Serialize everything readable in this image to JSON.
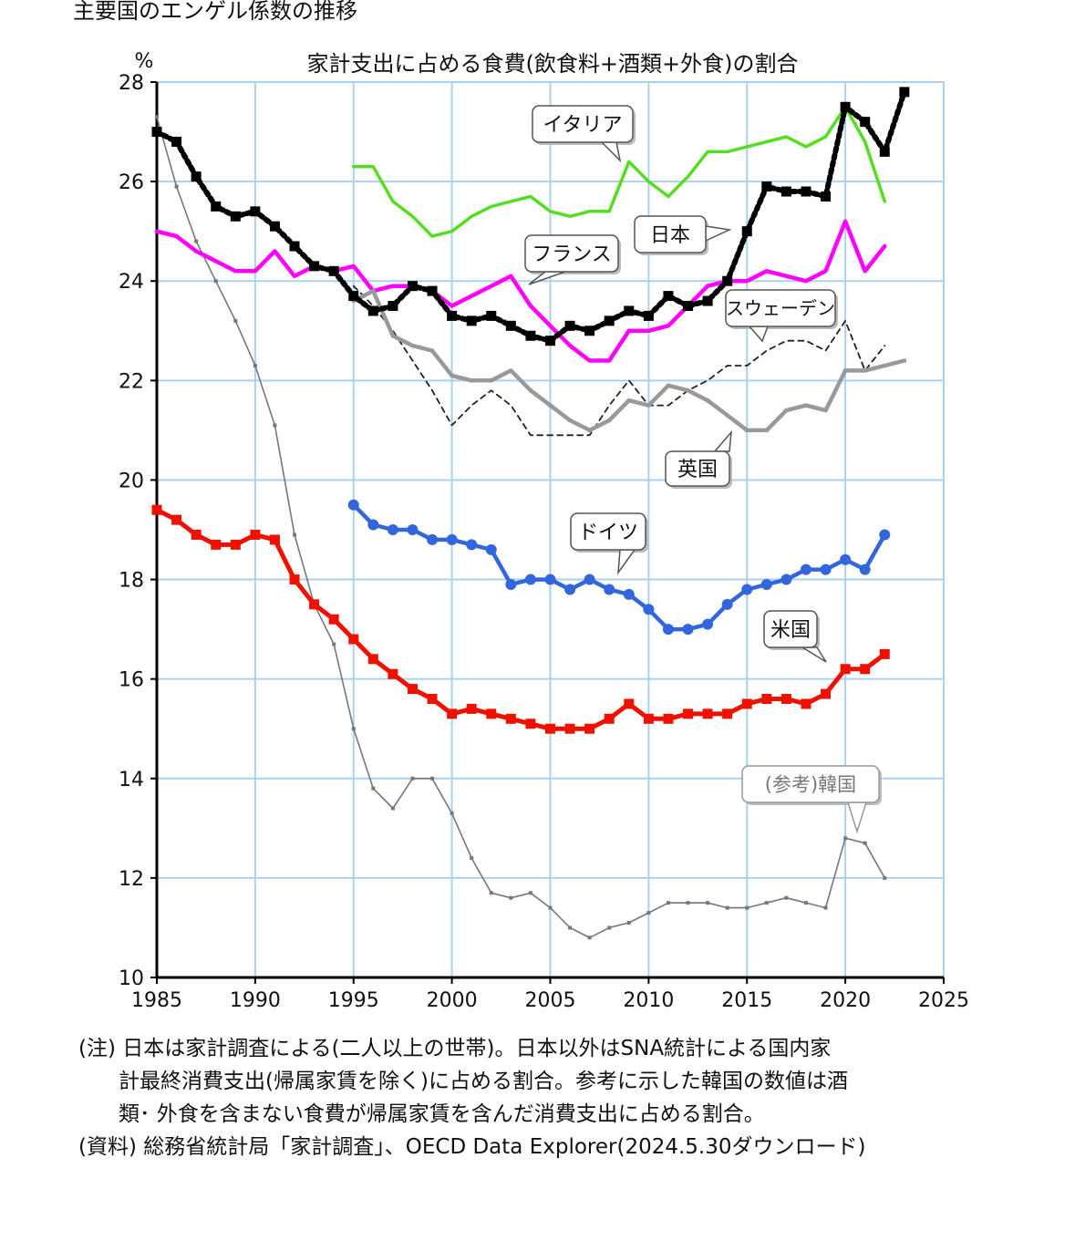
{
  "page_title": "主要国のエンゲル係数の推移",
  "notes": {
    "line1": "(注) 日本は家計調査による(二人以上の世帯)。日本以外はSNA統計による国内家",
    "line2": "計最終消費支出(帰属家賃を除く)に占める割合。参考に示した韓国の数値は酒",
    "line3": "類･ 外食を含まない食費が帰属家賃を含んだ消費支出に占める割合。",
    "line4": "(資料) 総務省統計局「家計調査」、OECD Data Explorer(2024.5.30ダウンロード)"
  },
  "chart_data": {
    "type": "line",
    "title": "家計支出に占める食費(飲食料+酒類+外食)の割合",
    "ylabel": "%",
    "xlim": [
      1985,
      2025
    ],
    "ylim": [
      10,
      28
    ],
    "x_ticks": [
      1985,
      1990,
      1995,
      2000,
      2005,
      2010,
      2015,
      2020,
      2025
    ],
    "y_ticks": [
      10,
      12,
      14,
      16,
      18,
      20,
      22,
      24,
      26,
      28
    ],
    "grid": true,
    "series": [
      {
        "name": "日本",
        "color": "#000000",
        "marker": "square",
        "x": [
          1985,
          1986,
          1987,
          1988,
          1989,
          1990,
          1991,
          1992,
          1993,
          1994,
          1995,
          1996,
          1997,
          1998,
          1999,
          2000,
          2001,
          2002,
          2003,
          2004,
          2005,
          2006,
          2007,
          2008,
          2009,
          2010,
          2011,
          2012,
          2013,
          2014,
          2015,
          2016,
          2017,
          2018,
          2019,
          2020,
          2021,
          2022,
          2023
        ],
        "values": [
          27.0,
          26.8,
          26.1,
          25.5,
          25.3,
          25.4,
          25.1,
          24.7,
          24.3,
          24.2,
          23.7,
          23.4,
          23.5,
          23.9,
          23.8,
          23.3,
          23.2,
          23.3,
          23.1,
          22.9,
          22.8,
          23.1,
          23.0,
          23.2,
          23.4,
          23.3,
          23.7,
          23.5,
          23.6,
          24.0,
          25.0,
          25.9,
          25.8,
          25.8,
          25.7,
          27.5,
          27.2,
          26.6,
          27.8
        ]
      },
      {
        "name": "イタリア",
        "color": "#55dd22",
        "marker": "none",
        "x": [
          1995,
          1996,
          1997,
          1998,
          1999,
          2000,
          2001,
          2002,
          2003,
          2004,
          2005,
          2006,
          2007,
          2008,
          2009,
          2010,
          2011,
          2012,
          2013,
          2014,
          2015,
          2016,
          2017,
          2018,
          2019,
          2020,
          2021,
          2022
        ],
        "values": [
          26.3,
          26.3,
          25.6,
          25.3,
          24.9,
          25.0,
          25.3,
          25.5,
          25.6,
          25.7,
          25.4,
          25.3,
          25.4,
          25.4,
          26.4,
          26.0,
          25.7,
          26.1,
          26.6,
          26.6,
          26.7,
          26.8,
          26.9,
          26.7,
          26.9,
          27.5,
          26.8,
          25.6
        ]
      },
      {
        "name": "フランス",
        "color": "#ff00ff",
        "marker": "none",
        "x": [
          1985,
          1986,
          1987,
          1988,
          1989,
          1990,
          1991,
          1992,
          1993,
          1994,
          1995,
          1996,
          1997,
          1998,
          1999,
          2000,
          2001,
          2002,
          2003,
          2004,
          2005,
          2006,
          2007,
          2008,
          2009,
          2010,
          2011,
          2012,
          2013,
          2014,
          2015,
          2016,
          2017,
          2018,
          2019,
          2020,
          2021,
          2022
        ],
        "values": [
          25.0,
          24.9,
          24.6,
          24.4,
          24.2,
          24.2,
          24.6,
          24.1,
          24.3,
          24.2,
          24.3,
          23.8,
          23.9,
          23.9,
          23.8,
          23.5,
          23.7,
          23.9,
          24.1,
          23.5,
          23.1,
          22.7,
          22.4,
          22.4,
          23.0,
          23.0,
          23.1,
          23.5,
          23.9,
          24.0,
          24.0,
          24.2,
          24.1,
          24.0,
          24.2,
          25.2,
          24.2,
          24.7
        ]
      },
      {
        "name": "スウェーデン",
        "color": "#222222",
        "marker": "dashed",
        "x": [
          1995,
          1996,
          1997,
          1998,
          1999,
          2000,
          2001,
          2002,
          2003,
          2004,
          2005,
          2006,
          2007,
          2008,
          2009,
          2010,
          2011,
          2012,
          2013,
          2014,
          2015,
          2016,
          2017,
          2018,
          2019,
          2020,
          2021,
          2022
        ],
        "values": [
          23.9,
          23.5,
          23.0,
          22.4,
          21.8,
          21.1,
          21.5,
          21.8,
          21.5,
          20.9,
          20.9,
          20.9,
          20.9,
          21.5,
          22.0,
          21.5,
          21.5,
          21.8,
          22.0,
          22.3,
          22.3,
          22.6,
          22.8,
          22.8,
          22.6,
          23.2,
          22.2,
          22.7
        ]
      },
      {
        "name": "英国",
        "color": "#999999",
        "marker": "dot",
        "x": [
          1995,
          1996,
          1997,
          1998,
          1999,
          2000,
          2001,
          2002,
          2003,
          2004,
          2005,
          2006,
          2007,
          2008,
          2009,
          2010,
          2011,
          2012,
          2013,
          2014,
          2015,
          2016,
          2017,
          2018,
          2019,
          2020,
          2021,
          2022,
          2023
        ],
        "values": [
          23.6,
          23.8,
          22.9,
          22.7,
          22.6,
          22.1,
          22.0,
          22.0,
          22.2,
          21.8,
          21.5,
          21.2,
          21.0,
          21.2,
          21.6,
          21.5,
          21.9,
          21.8,
          21.6,
          21.3,
          21.0,
          21.0,
          21.4,
          21.5,
          21.4,
          22.2,
          22.2,
          22.3,
          22.4
        ]
      },
      {
        "name": "ドイツ",
        "color": "#3366dd",
        "marker": "circle",
        "x": [
          1995,
          1996,
          1997,
          1998,
          1999,
          2000,
          2001,
          2002,
          2003,
          2004,
          2005,
          2006,
          2007,
          2008,
          2009,
          2010,
          2011,
          2012,
          2013,
          2014,
          2015,
          2016,
          2017,
          2018,
          2019,
          2020,
          2021,
          2022
        ],
        "values": [
          19.5,
          19.1,
          19.0,
          19.0,
          18.8,
          18.8,
          18.7,
          18.6,
          17.9,
          18.0,
          18.0,
          17.8,
          18.0,
          17.8,
          17.7,
          17.4,
          17.0,
          17.0,
          17.1,
          17.5,
          17.8,
          17.9,
          18.0,
          18.2,
          18.2,
          18.4,
          18.2,
          18.9
        ]
      },
      {
        "name": "米国",
        "color": "#ee1100",
        "marker": "square",
        "x": [
          1985,
          1986,
          1987,
          1988,
          1989,
          1990,
          1991,
          1992,
          1993,
          1994,
          1995,
          1996,
          1997,
          1998,
          1999,
          2000,
          2001,
          2002,
          2003,
          2004,
          2005,
          2006,
          2007,
          2008,
          2009,
          2010,
          2011,
          2012,
          2013,
          2014,
          2015,
          2016,
          2017,
          2018,
          2019,
          2020,
          2021,
          2022
        ],
        "values": [
          19.4,
          19.2,
          18.9,
          18.7,
          18.7,
          18.9,
          18.8,
          18.0,
          17.5,
          17.2,
          16.8,
          16.4,
          16.1,
          15.8,
          15.6,
          15.3,
          15.4,
          15.3,
          15.2,
          15.1,
          15.0,
          15.0,
          15.0,
          15.2,
          15.5,
          15.2,
          15.2,
          15.3,
          15.3,
          15.3,
          15.5,
          15.6,
          15.6,
          15.5,
          15.7,
          16.2,
          16.2,
          16.5
        ]
      },
      {
        "name": "(参考)韓国",
        "color": "#777777",
        "marker": "dot",
        "x": [
          1985,
          1986,
          1987,
          1988,
          1989,
          1990,
          1991,
          1992,
          1993,
          1994,
          1995,
          1996,
          1997,
          1998,
          1999,
          2000,
          2001,
          2002,
          2003,
          2004,
          2005,
          2006,
          2007,
          2008,
          2009,
          2010,
          2011,
          2012,
          2013,
          2014,
          2015,
          2016,
          2017,
          2018,
          2019,
          2020,
          2021,
          2022
        ],
        "values": [
          27.3,
          25.9,
          24.8,
          24.0,
          23.2,
          22.3,
          21.1,
          18.9,
          17.5,
          16.7,
          15.0,
          13.8,
          13.4,
          14.0,
          14.0,
          13.3,
          12.4,
          11.7,
          11.6,
          11.7,
          11.4,
          11.0,
          10.8,
          11.0,
          11.1,
          11.3,
          11.5,
          11.5,
          11.5,
          11.4,
          11.4,
          11.5,
          11.6,
          11.5,
          11.4,
          12.8,
          12.7,
          12.0
        ]
      }
    ],
    "annotations": [
      {
        "text": "イタリア",
        "series": "イタリア"
      },
      {
        "text": "日本",
        "series": "日本"
      },
      {
        "text": "フランス",
        "series": "フランス"
      },
      {
        "text": "スウェーデン",
        "series": "スウェーデン"
      },
      {
        "text": "英国",
        "series": "英国"
      },
      {
        "text": "ドイツ",
        "series": "ドイツ"
      },
      {
        "text": "米国",
        "series": "米国"
      },
      {
        "text": "(参考)韓国",
        "series": "(参考)韓国"
      }
    ]
  }
}
